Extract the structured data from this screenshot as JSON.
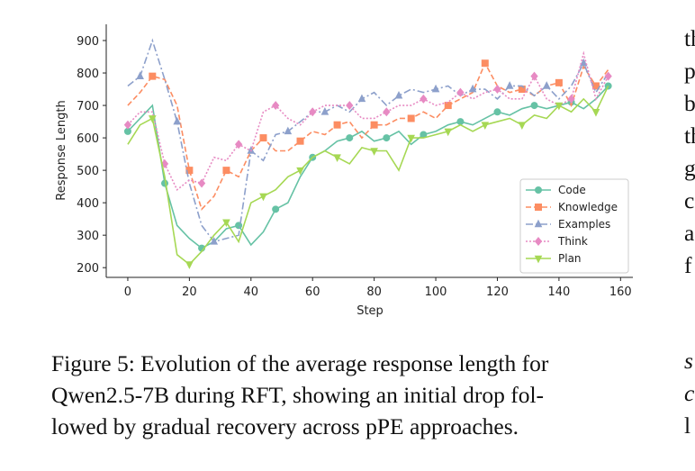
{
  "chart_data": {
    "type": "line",
    "xlabel": "Step",
    "ylabel": "Response Length",
    "x": [
      0,
      4,
      8,
      12,
      16,
      20,
      24,
      28,
      32,
      36,
      40,
      44,
      48,
      52,
      56,
      60,
      64,
      68,
      72,
      76,
      80,
      84,
      88,
      92,
      96,
      100,
      104,
      108,
      112,
      116,
      120,
      124,
      128,
      132,
      136,
      140,
      144,
      148,
      152,
      156
    ],
    "series": [
      {
        "name": "Code",
        "color": "#66c2a5",
        "linestyle": "solid",
        "marker": "circle",
        "values": [
          620,
          660,
          700,
          460,
          330,
          290,
          260,
          280,
          320,
          330,
          270,
          310,
          380,
          400,
          480,
          540,
          560,
          590,
          600,
          620,
          590,
          600,
          620,
          580,
          610,
          620,
          640,
          650,
          640,
          660,
          680,
          670,
          690,
          700,
          690,
          700,
          710,
          690,
          720,
          760
        ]
      },
      {
        "name": "Knowledge",
        "color": "#fc8d62",
        "linestyle": "dashed",
        "marker": "square",
        "values": [
          700,
          740,
          790,
          780,
          700,
          500,
          380,
          420,
          500,
          480,
          560,
          600,
          560,
          560,
          590,
          620,
          610,
          640,
          650,
          600,
          640,
          640,
          660,
          660,
          680,
          660,
          700,
          720,
          740,
          830,
          760,
          740,
          750,
          730,
          760,
          770,
          700,
          820,
          760,
          810
        ]
      },
      {
        "name": "Examples",
        "color": "#8da0cb",
        "linestyle": "dashdot",
        "marker": "triangle",
        "values": [
          760,
          790,
          900,
          780,
          650,
          460,
          330,
          280,
          290,
          300,
          560,
          530,
          610,
          620,
          650,
          680,
          680,
          700,
          680,
          720,
          740,
          700,
          730,
          750,
          740,
          750,
          760,
          730,
          750,
          750,
          720,
          760,
          760,
          730,
          760,
          720,
          760,
          830,
          740,
          800
        ]
      },
      {
        "name": "Think",
        "color": "#e78ac3",
        "linestyle": "dotted",
        "marker": "diamond",
        "values": [
          640,
          680,
          680,
          520,
          440,
          470,
          460,
          540,
          530,
          580,
          560,
          680,
          700,
          660,
          640,
          680,
          700,
          700,
          700,
          660,
          660,
          680,
          700,
          700,
          720,
          700,
          710,
          740,
          720,
          740,
          750,
          720,
          720,
          790,
          720,
          700,
          720,
          860,
          720,
          790
        ]
      },
      {
        "name": "Plan",
        "color": "#a6d854",
        "linestyle": "solid",
        "marker": "triangle-down",
        "values": [
          580,
          640,
          660,
          480,
          240,
          210,
          250,
          300,
          340,
          280,
          400,
          420,
          440,
          480,
          500,
          540,
          560,
          540,
          520,
          570,
          560,
          560,
          500,
          600,
          600,
          610,
          620,
          640,
          620,
          640,
          650,
          660,
          640,
          670,
          660,
          700,
          680,
          720,
          680,
          760
        ]
      }
    ],
    "xlim": [
      -7,
      164
    ],
    "ylim": [
      170,
      950
    ],
    "xticks": [
      0,
      20,
      40,
      60,
      80,
      100,
      120,
      140,
      160
    ],
    "yticks": [
      200,
      300,
      400,
      500,
      600,
      700,
      800,
      900
    ],
    "legend": "lower right",
    "grid": false
  },
  "caption": [
    "Figure 5: Evolution of the average response length for",
    "Qwen2.5-7B during RFT, showing an initial drop fol-",
    "lowed by gradual recovery across pPE approaches."
  ],
  "right_column_fragments": [
    "th",
    "p",
    "b",
    "th",
    "g",
    "c",
    "a",
    "f"
  ],
  "right_column_lower": [
    "s",
    "c",
    "l"
  ]
}
